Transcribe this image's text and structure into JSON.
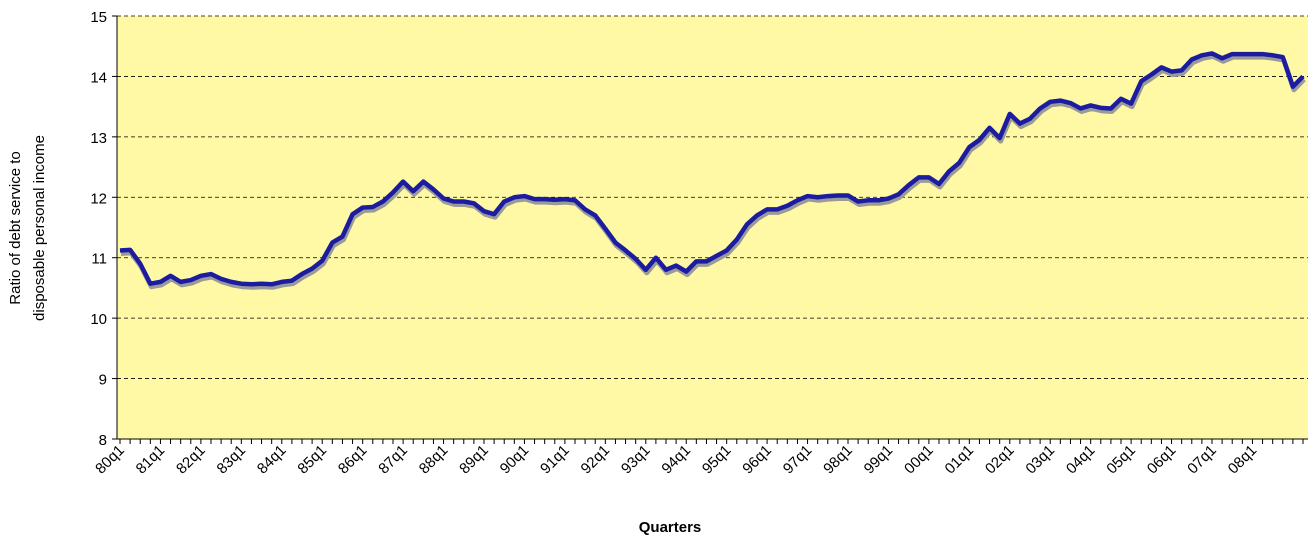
{
  "chart_data": {
    "type": "line",
    "y_label": [
      "Ratio of debt service to",
      "disposable personal income"
    ],
    "x_label": "Quarters",
    "categories": [
      "80q1",
      null,
      null,
      null,
      "81q1",
      null,
      null,
      null,
      "82q1",
      null,
      null,
      null,
      "83q1",
      null,
      null,
      null,
      "84q1",
      null,
      null,
      null,
      "85q1",
      null,
      null,
      null,
      "86q1",
      null,
      null,
      null,
      "87q1",
      null,
      null,
      null,
      "88q1",
      null,
      null,
      null,
      "89q1",
      null,
      null,
      null,
      "90q1",
      null,
      null,
      null,
      "91q1",
      null,
      null,
      null,
      "92q1",
      null,
      null,
      null,
      "93q1",
      null,
      null,
      null,
      "94q1",
      null,
      null,
      null,
      "95q1",
      null,
      null,
      null,
      "96q1",
      null,
      null,
      null,
      "97q1",
      null,
      null,
      null,
      "98q1",
      null,
      null,
      null,
      "99q1",
      null,
      null,
      null,
      "00q1",
      null,
      null,
      null,
      "01q1",
      null,
      null,
      null,
      "02q1",
      null,
      null,
      null,
      "03q1",
      null,
      null,
      null,
      "04q1",
      null,
      null,
      null,
      "05q1",
      null,
      null,
      null,
      "06q1",
      null,
      null,
      null,
      "07q1",
      null,
      null,
      null,
      "08q1",
      null,
      null,
      null,
      null,
      null
    ],
    "values": [
      11.12,
      11.13,
      10.9,
      10.57,
      10.6,
      10.7,
      10.6,
      10.63,
      10.7,
      10.73,
      10.65,
      10.6,
      10.57,
      10.56,
      10.57,
      10.56,
      10.6,
      10.62,
      10.73,
      10.82,
      10.95,
      11.25,
      11.35,
      11.72,
      11.83,
      11.84,
      11.93,
      12.08,
      12.26,
      12.1,
      12.26,
      12.13,
      11.98,
      11.93,
      11.93,
      11.9,
      11.77,
      11.72,
      11.93,
      12.0,
      12.02,
      11.97,
      11.97,
      11.96,
      11.97,
      11.95,
      11.8,
      11.7,
      11.48,
      11.25,
      11.12,
      10.98,
      10.8,
      11.0,
      10.8,
      10.87,
      10.77,
      10.94,
      10.94,
      11.03,
      11.12,
      11.3,
      11.55,
      11.7,
      11.8,
      11.8,
      11.86,
      11.95,
      12.02,
      12.0,
      12.02,
      12.03,
      12.03,
      11.93,
      11.95,
      11.95,
      11.98,
      12.05,
      12.2,
      12.33,
      12.33,
      12.22,
      12.43,
      12.57,
      12.83,
      12.95,
      13.15,
      12.98,
      13.38,
      13.22,
      13.3,
      13.47,
      13.58,
      13.6,
      13.56,
      13.47,
      13.52,
      13.48,
      13.47,
      13.63,
      13.55,
      13.92,
      14.03,
      14.15,
      14.08,
      14.1,
      14.28,
      14.35,
      14.38,
      14.3,
      14.37,
      14.37,
      14.37,
      14.37,
      14.35,
      14.32,
      13.83,
      14.0
    ],
    "color": "#1c1ca0",
    "ylim": [
      8,
      15
    ],
    "yticks": [
      8,
      9,
      10,
      11,
      12,
      13,
      14,
      15
    ],
    "grid": true
  }
}
